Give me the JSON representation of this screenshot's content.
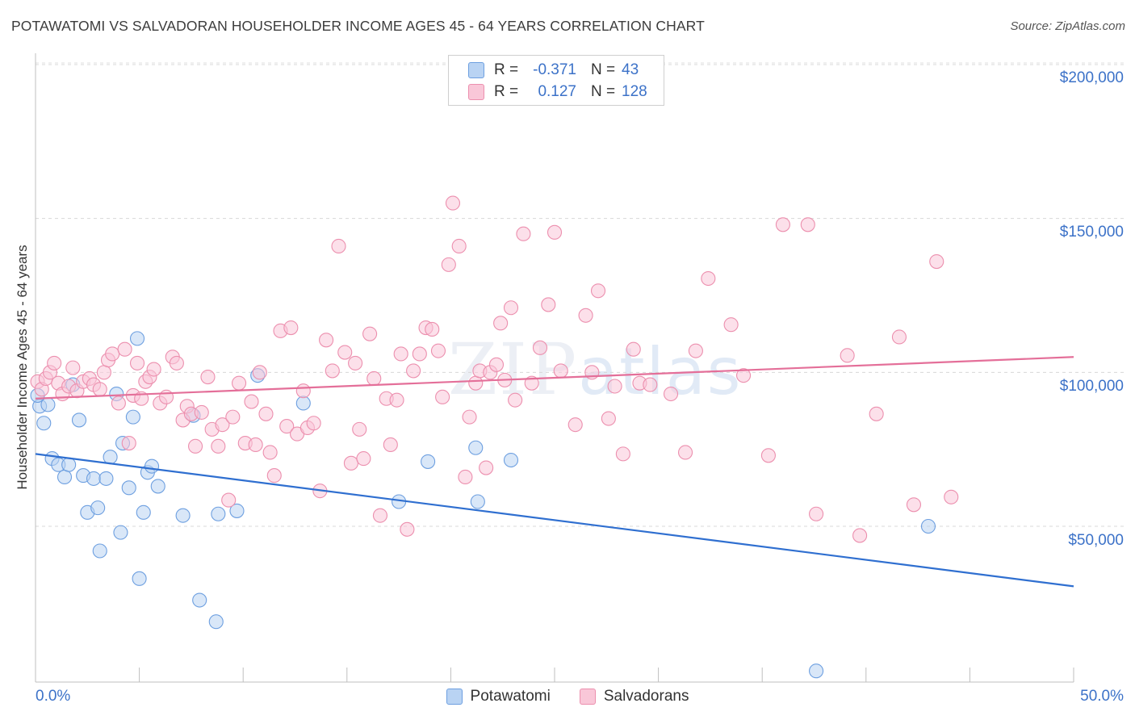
{
  "title": "POTAWATOMI VS SALVADORAN HOUSEHOLDER INCOME AGES 45 - 64 YEARS CORRELATION CHART",
  "source": "Source: ZipAtlas.com",
  "watermark": {
    "zip": "ZIP",
    "atlas": "atlas"
  },
  "legend": {
    "r_label": "R =",
    "n_label": "N =",
    "rows": [
      {
        "r": "-0.371",
        "n": "43",
        "color": "#a9c8ef",
        "border": "#6d9fe0"
      },
      {
        "r": "0.127",
        "n": "128",
        "color": "#f8bfd2",
        "border": "#ec8fae"
      }
    ]
  },
  "bottom_legend": [
    "Potawatomi",
    "Salvadorans"
  ],
  "x_tick_labels": [
    "0.0%",
    "50.0%"
  ],
  "y_tick_labels": [
    "$200,000",
    "$150,000",
    "$100,000",
    "$50,000"
  ],
  "chart_data": {
    "type": "scatter",
    "title": "POTAWATOMI VS SALVADORAN HOUSEHOLDER INCOME AGES 45 - 64 YEARS CORRELATION CHART",
    "xlabel": "",
    "ylabel": "Householder Income Ages 45 - 64 years",
    "xlim": [
      0,
      50
    ],
    "ylim": [
      0,
      205000
    ],
    "y_ticks": [
      50000,
      100000,
      150000,
      200000
    ],
    "series": [
      {
        "name": "Potawatomi",
        "color": "#6d9fe0",
        "fill": "#b9d3f3",
        "trend": {
          "x": [
            0,
            50
          ],
          "y": [
            73500,
            30500
          ]
        },
        "points": [
          [
            0.2,
            89000
          ],
          [
            0.4,
            83500
          ],
          [
            0.6,
            89500
          ],
          [
            0.8,
            72000
          ],
          [
            1.1,
            70000
          ],
          [
            1.4,
            66000
          ],
          [
            1.6,
            70000
          ],
          [
            1.8,
            96000
          ],
          [
            2.1,
            84500
          ],
          [
            2.3,
            66500
          ],
          [
            2.5,
            54500
          ],
          [
            2.8,
            65500
          ],
          [
            3.0,
            56000
          ],
          [
            3.1,
            42000
          ],
          [
            3.4,
            65500
          ],
          [
            3.6,
            72500
          ],
          [
            3.9,
            93000
          ],
          [
            4.2,
            77000
          ],
          [
            4.1,
            48000
          ],
          [
            4.5,
            62500
          ],
          [
            4.7,
            85500
          ],
          [
            4.9,
            111000
          ],
          [
            5.0,
            33000
          ],
          [
            5.2,
            54500
          ],
          [
            5.4,
            67500
          ],
          [
            5.6,
            69500
          ],
          [
            5.9,
            63000
          ],
          [
            7.1,
            53500
          ],
          [
            7.6,
            86000
          ],
          [
            7.9,
            26000
          ],
          [
            8.7,
            19000
          ],
          [
            8.8,
            54000
          ],
          [
            9.7,
            55000
          ],
          [
            10.7,
            99000
          ],
          [
            12.9,
            90000
          ],
          [
            17.5,
            58000
          ],
          [
            18.9,
            71000
          ],
          [
            21.2,
            75500
          ],
          [
            21.3,
            58000
          ],
          [
            22.9,
            71500
          ],
          [
            37.6,
            3000
          ],
          [
            43.0,
            50000
          ],
          [
            0.1,
            92500
          ]
        ]
      },
      {
        "name": "Salvadorans",
        "color": "#ec8fae",
        "fill": "#f9c7d8",
        "trend": {
          "x": [
            0,
            50
          ],
          "y": [
            91500,
            105000
          ]
        },
        "points": [
          [
            0.1,
            97000
          ],
          [
            0.3,
            94500
          ],
          [
            0.5,
            98000
          ],
          [
            0.7,
            100000
          ],
          [
            0.9,
            103000
          ],
          [
            1.1,
            96500
          ],
          [
            1.3,
            93000
          ],
          [
            1.6,
            95500
          ],
          [
            1.8,
            101500
          ],
          [
            2.0,
            94000
          ],
          [
            2.3,
            97000
          ],
          [
            2.6,
            98000
          ],
          [
            2.8,
            96000
          ],
          [
            3.1,
            94500
          ],
          [
            3.3,
            100000
          ],
          [
            3.5,
            104000
          ],
          [
            3.7,
            106000
          ],
          [
            4.0,
            90000
          ],
          [
            4.3,
            107500
          ],
          [
            4.5,
            77000
          ],
          [
            4.7,
            92500
          ],
          [
            4.9,
            103000
          ],
          [
            5.1,
            91500
          ],
          [
            5.3,
            97000
          ],
          [
            5.5,
            98500
          ],
          [
            5.7,
            101000
          ],
          [
            6.0,
            90000
          ],
          [
            6.3,
            92000
          ],
          [
            6.6,
            105000
          ],
          [
            6.8,
            103000
          ],
          [
            7.1,
            84500
          ],
          [
            7.3,
            89000
          ],
          [
            7.5,
            86500
          ],
          [
            7.7,
            76000
          ],
          [
            8.0,
            87000
          ],
          [
            8.3,
            98500
          ],
          [
            8.5,
            81500
          ],
          [
            8.8,
            76000
          ],
          [
            9.0,
            83000
          ],
          [
            9.3,
            58500
          ],
          [
            9.5,
            85500
          ],
          [
            9.8,
            96500
          ],
          [
            10.1,
            77000
          ],
          [
            10.4,
            90500
          ],
          [
            10.6,
            76500
          ],
          [
            10.8,
            100000
          ],
          [
            11.1,
            86500
          ],
          [
            11.3,
            74000
          ],
          [
            11.5,
            66500
          ],
          [
            11.8,
            113500
          ],
          [
            12.1,
            82500
          ],
          [
            12.3,
            114500
          ],
          [
            12.6,
            80000
          ],
          [
            12.9,
            94000
          ],
          [
            13.1,
            82000
          ],
          [
            13.4,
            83500
          ],
          [
            13.7,
            61500
          ],
          [
            14.0,
            110500
          ],
          [
            14.3,
            100500
          ],
          [
            14.6,
            141000
          ],
          [
            14.9,
            106500
          ],
          [
            15.2,
            70500
          ],
          [
            15.4,
            103000
          ],
          [
            15.6,
            81500
          ],
          [
            15.8,
            72000
          ],
          [
            16.1,
            112500
          ],
          [
            16.3,
            98000
          ],
          [
            16.6,
            53500
          ],
          [
            16.9,
            91500
          ],
          [
            17.1,
            76500
          ],
          [
            17.4,
            91000
          ],
          [
            17.6,
            106000
          ],
          [
            17.9,
            49000
          ],
          [
            18.2,
            100500
          ],
          [
            18.5,
            106000
          ],
          [
            18.8,
            114500
          ],
          [
            19.1,
            114000
          ],
          [
            19.4,
            107000
          ],
          [
            19.6,
            92000
          ],
          [
            19.9,
            135000
          ],
          [
            20.1,
            155000
          ],
          [
            20.4,
            141000
          ],
          [
            20.7,
            66000
          ],
          [
            20.9,
            85500
          ],
          [
            21.2,
            96500
          ],
          [
            21.4,
            100500
          ],
          [
            21.7,
            69000
          ],
          [
            21.9,
            100000
          ],
          [
            22.2,
            102500
          ],
          [
            22.4,
            116000
          ],
          [
            22.6,
            97500
          ],
          [
            22.9,
            121000
          ],
          [
            23.1,
            91000
          ],
          [
            23.5,
            145000
          ],
          [
            23.9,
            96500
          ],
          [
            24.3,
            108000
          ],
          [
            24.7,
            122000
          ],
          [
            25.0,
            145500
          ],
          [
            25.3,
            100500
          ],
          [
            26.0,
            83000
          ],
          [
            26.5,
            118500
          ],
          [
            26.8,
            100000
          ],
          [
            27.1,
            126500
          ],
          [
            27.6,
            85000
          ],
          [
            27.9,
            95500
          ],
          [
            28.3,
            73500
          ],
          [
            28.8,
            107500
          ],
          [
            29.1,
            96500
          ],
          [
            29.6,
            96000
          ],
          [
            30.6,
            93000
          ],
          [
            31.8,
            107000
          ],
          [
            32.4,
            130500
          ],
          [
            33.5,
            115500
          ],
          [
            34.1,
            99000
          ],
          [
            36.0,
            148000
          ],
          [
            37.2,
            148000
          ],
          [
            37.6,
            54000
          ],
          [
            39.1,
            105500
          ],
          [
            40.5,
            86500
          ],
          [
            41.6,
            111500
          ],
          [
            42.3,
            57000
          ],
          [
            43.4,
            136000
          ],
          [
            44.1,
            59500
          ],
          [
            39.7,
            47000
          ],
          [
            35.3,
            73000
          ],
          [
            31.3,
            74000
          ]
        ]
      }
    ]
  }
}
